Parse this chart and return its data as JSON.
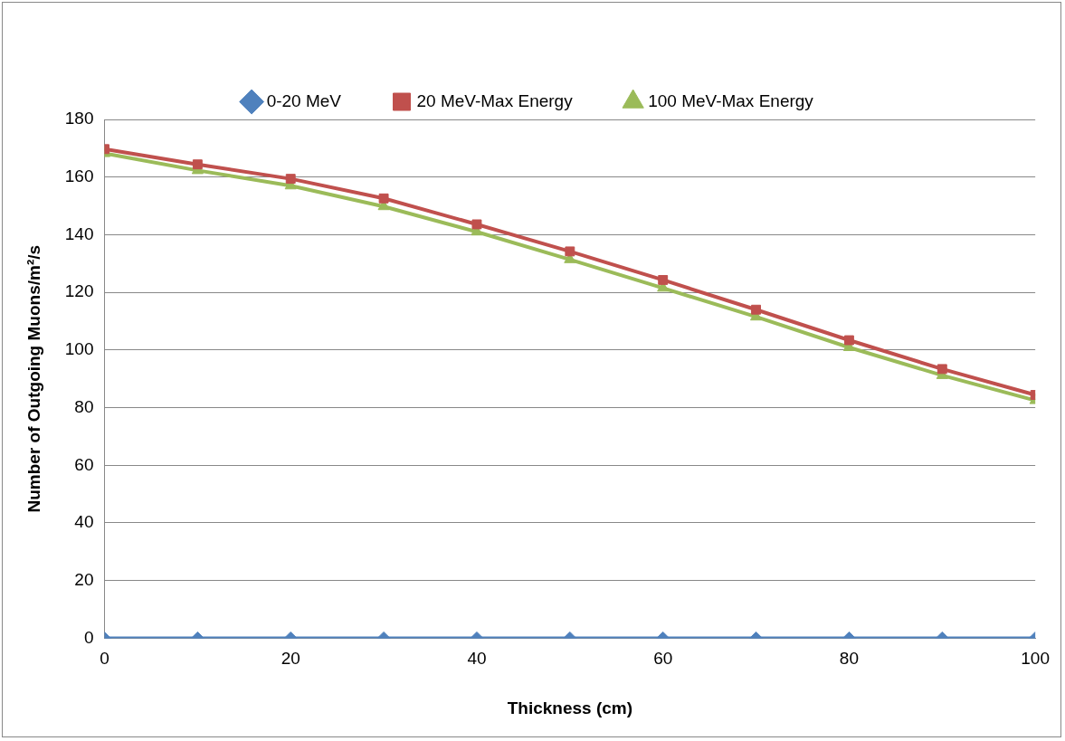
{
  "chart_data": {
    "type": "line",
    "xlabel": "Thickness (cm)",
    "ylabel": "Number of Outgoing Muons/m²/s",
    "x": [
      0,
      10,
      20,
      30,
      40,
      50,
      60,
      70,
      80,
      90,
      100
    ],
    "series": [
      {
        "name": "0-20 MeV",
        "color": "#4f81bd",
        "marker": "diamond",
        "values": [
          0,
          0,
          0,
          0,
          0,
          0,
          0,
          0,
          0,
          0,
          0
        ]
      },
      {
        "name": "20 MeV-Max Energy",
        "color": "#c0504d",
        "marker": "square",
        "values": [
          169.7,
          164.4,
          159.4,
          152.6,
          143.6,
          134.2,
          124.3,
          114,
          103.4,
          93.4,
          84.4
        ]
      },
      {
        "name": "100 MeV-Max Energy",
        "color": "#9bbb59",
        "marker": "triangle",
        "values": [
          168.2,
          162.3,
          157,
          149.8,
          141,
          131.4,
          121.5,
          111.5,
          100.9,
          91.2,
          82.5
        ]
      }
    ],
    "xlim": [
      0,
      100
    ],
    "xticks": [
      0,
      20,
      40,
      60,
      80,
      100
    ],
    "ylim": [
      0,
      180
    ],
    "yticks": [
      0,
      20,
      40,
      60,
      80,
      100,
      120,
      140,
      160,
      180
    ],
    "grid": "y",
    "legend": "top",
    "line_style": "solid"
  }
}
